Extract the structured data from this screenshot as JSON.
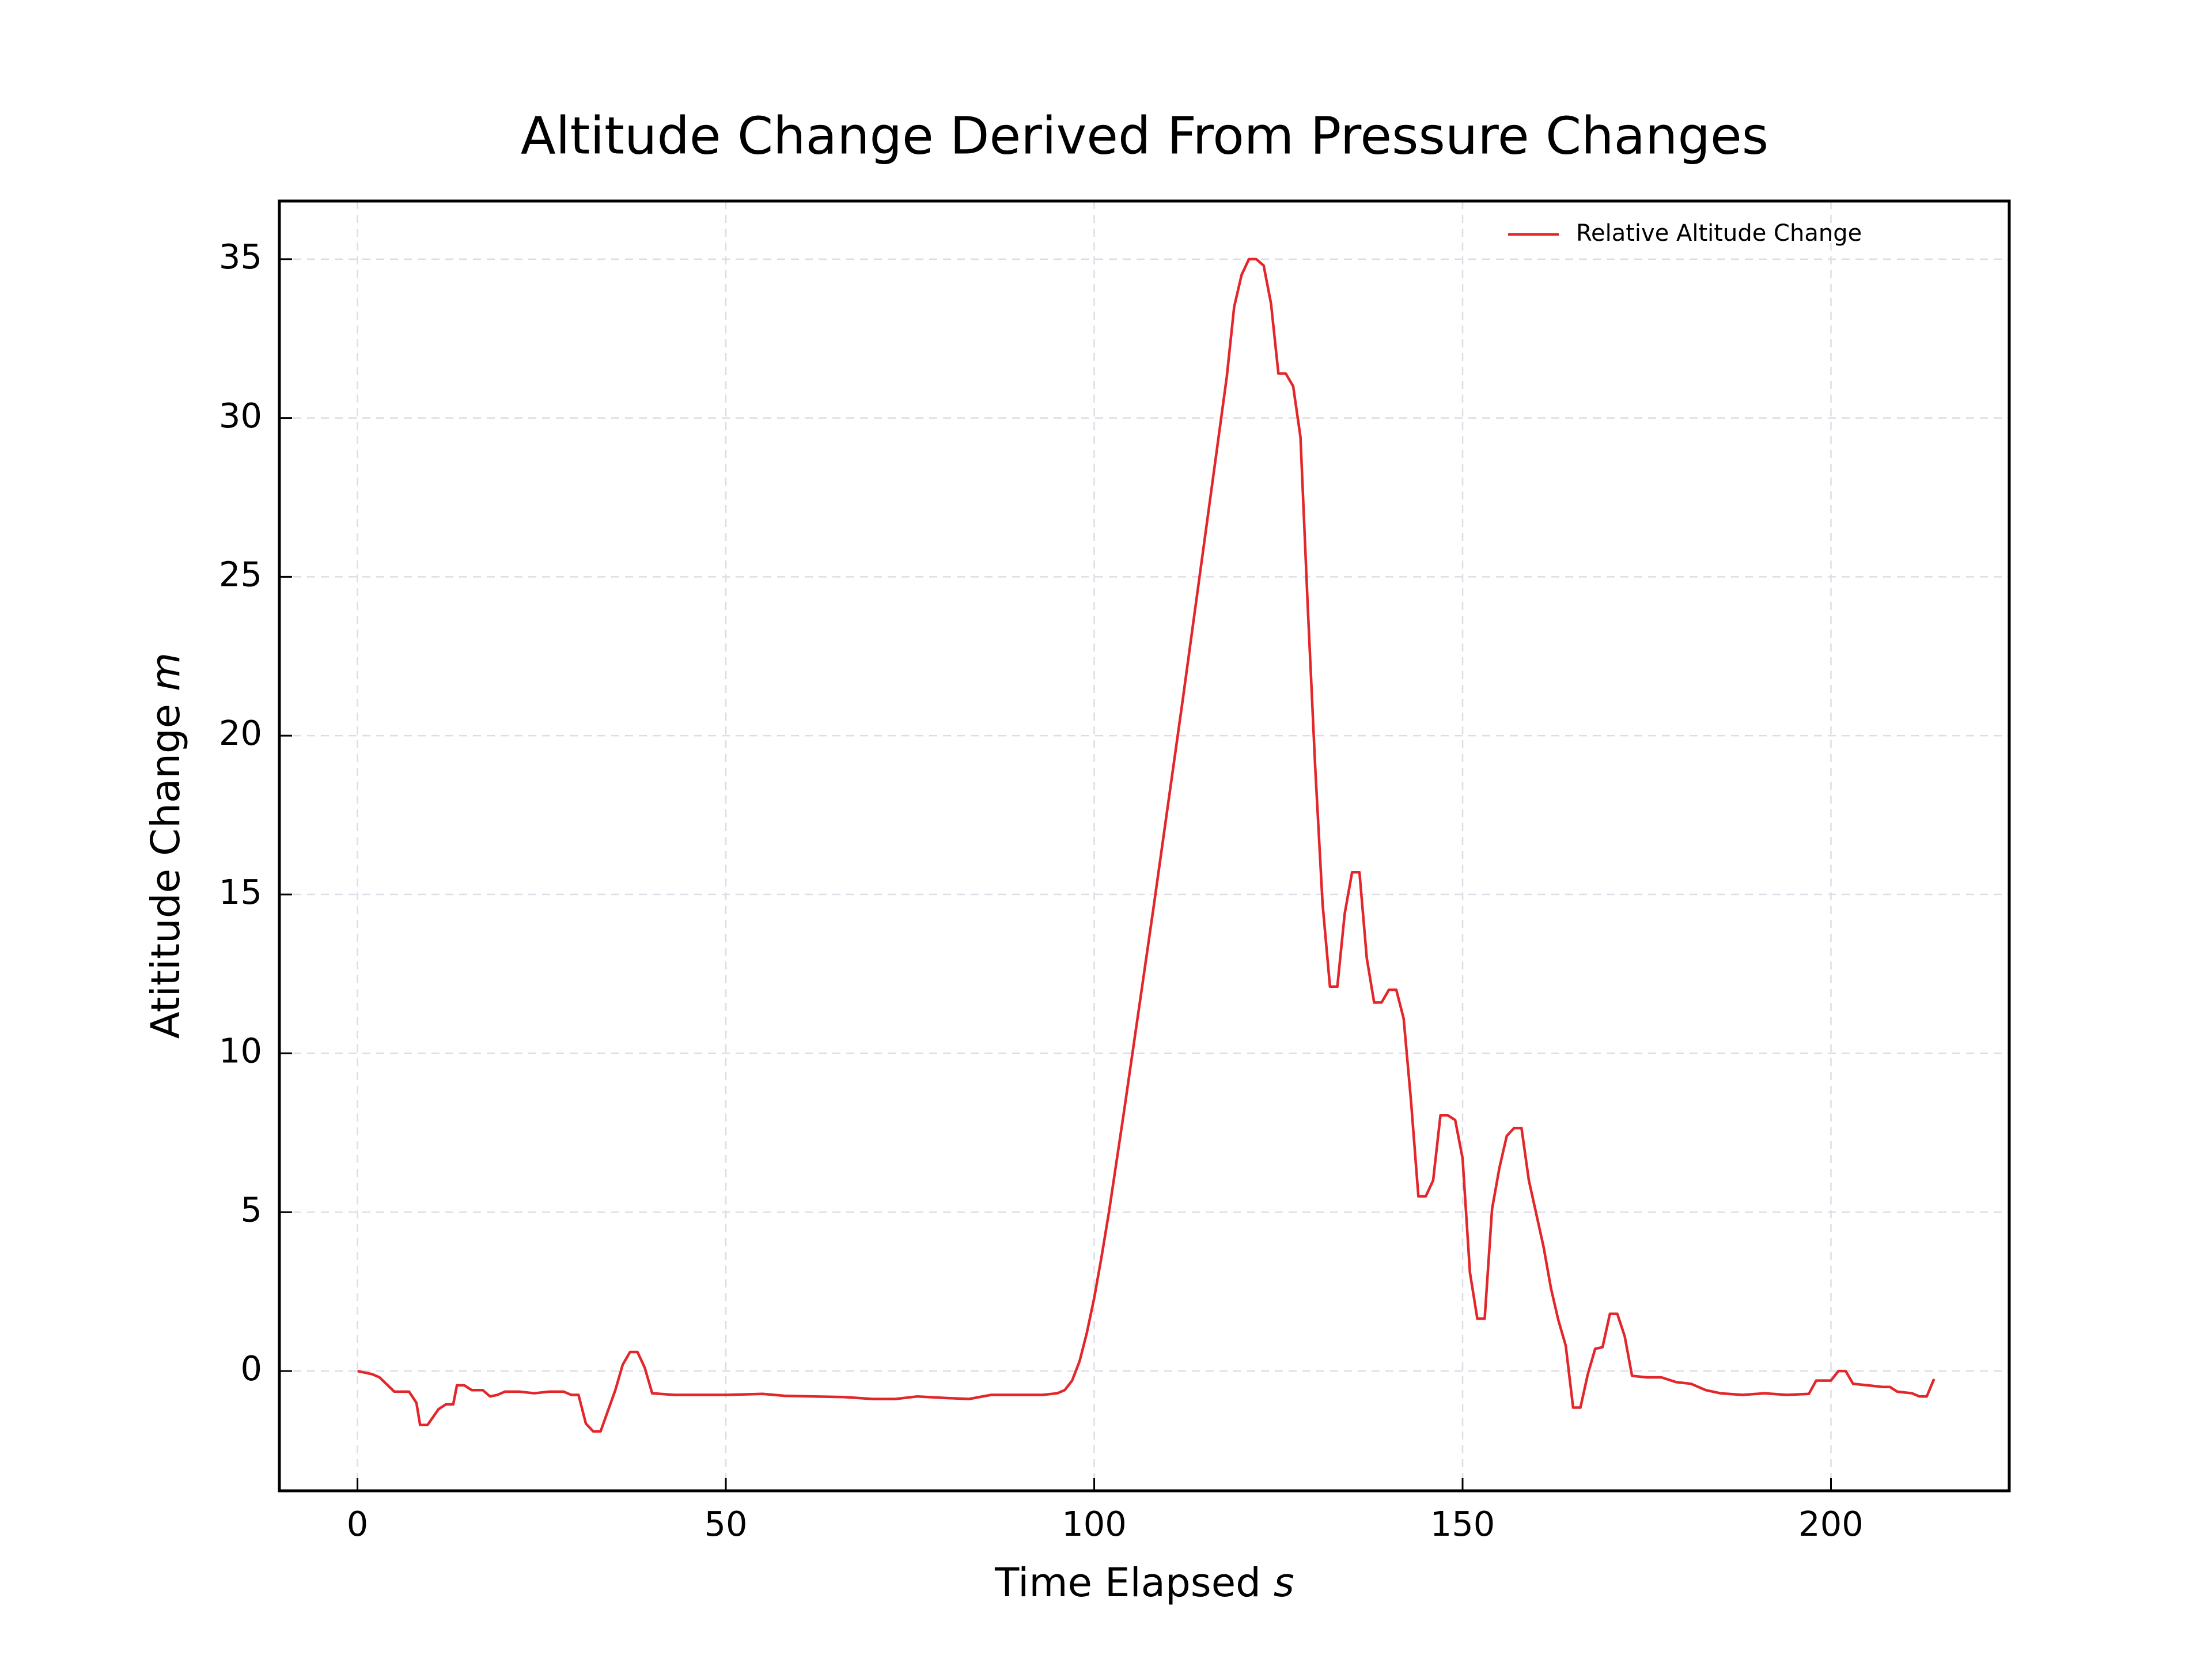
{
  "chart_data": {
    "type": "line",
    "title": "Altitude Change Derived From Pressure Changes",
    "xlabel": {
      "text": "Time Elapsed",
      "unit": "s"
    },
    "ylabel": {
      "text": "Atititude Change",
      "unit": "m"
    },
    "x": [
      0,
      2,
      3,
      5,
      7,
      8,
      8.5,
      9.5,
      11,
      12,
      13,
      13.5,
      14.5,
      15.5,
      17,
      18,
      19,
      20,
      22,
      24,
      26,
      28,
      29,
      30,
      31,
      32,
      33,
      35,
      36,
      37,
      38,
      39,
      40,
      43,
      46,
      50,
      55,
      58,
      62,
      66,
      70,
      73,
      76,
      80,
      83,
      86,
      90,
      93,
      95,
      96,
      97,
      98,
      99,
      100,
      101,
      102,
      104,
      106,
      108,
      110,
      112,
      114,
      116,
      118,
      119,
      120,
      121,
      122,
      123,
      124,
      125,
      126,
      127,
      128,
      129,
      130,
      131,
      132,
      133,
      134,
      135,
      136,
      137,
      138,
      139,
      140,
      141,
      142,
      143,
      144,
      145,
      146,
      147,
      148,
      149,
      150,
      151,
      152,
      153,
      154,
      155,
      156,
      157,
      158,
      159,
      161,
      162,
      163,
      164,
      165,
      166,
      167,
      168,
      169,
      170,
      171,
      172,
      173,
      175,
      177,
      179,
      181,
      183,
      185,
      188,
      191,
      194,
      197,
      198,
      200,
      201,
      202,
      203,
      205,
      207,
      208,
      209,
      211,
      212,
      213,
      214
    ],
    "series": [
      {
        "name": "Relative Altitude Change",
        "color": "#e3262a",
        "values": [
          0,
          -0.1,
          -0.2,
          -0.65,
          -0.65,
          -1.0,
          -1.7,
          -1.7,
          -1.2,
          -1.05,
          -1.05,
          -0.45,
          -0.45,
          -0.6,
          -0.6,
          -0.8,
          -0.75,
          -0.65,
          -0.65,
          -0.7,
          -0.65,
          -0.65,
          -0.75,
          -0.75,
          -1.65,
          -1.9,
          -1.9,
          -0.6,
          0.2,
          0.6,
          0.6,
          0.1,
          -0.7,
          -0.75,
          -0.75,
          -0.75,
          -0.72,
          -0.78,
          -0.8,
          -0.82,
          -0.88,
          -0.88,
          -0.8,
          -0.85,
          -0.88,
          -0.75,
          -0.75,
          -0.75,
          -0.7,
          -0.6,
          -0.3,
          0.3,
          1.2,
          2.3,
          3.6,
          5.0,
          8.1,
          11.3,
          14.5,
          17.8,
          21.1,
          24.5,
          27.9,
          31.3,
          33.5,
          34.5,
          35,
          35,
          34.8,
          33.6,
          31.4,
          31.4,
          31.0,
          29.4,
          24,
          19,
          14.7,
          12.1,
          12.1,
          14.4,
          15.7,
          15.7,
          13,
          11.6,
          11.6,
          12.0,
          12.0,
          11.1,
          8.5,
          5.5,
          5.5,
          6.0,
          8.05,
          8.05,
          7.9,
          6.7,
          3.1,
          1.65,
          1.65,
          5.1,
          6.4,
          7.4,
          7.65,
          7.65,
          6.0,
          3.9,
          2.6,
          1.6,
          0.8,
          -1.15,
          -1.15,
          -0.1,
          0.7,
          0.75,
          1.8,
          1.8,
          1.1,
          -0.15,
          -0.2,
          -0.2,
          -0.35,
          -0.4,
          -0.6,
          -0.7,
          -0.75,
          -0.7,
          -0.75,
          -0.72,
          -0.3,
          -0.3,
          0,
          0,
          -0.4,
          -0.45,
          -0.5,
          -0.5,
          -0.65,
          -0.7,
          -0.8,
          -0.8,
          -0.25
        ]
      }
    ],
    "xlim": [
      -10.6,
      224.2
    ],
    "ylim": [
      -3.77,
      36.83
    ],
    "xticks": [
      0,
      50,
      100,
      150,
      200
    ],
    "yticks": [
      0,
      5,
      10,
      15,
      20,
      25,
      30,
      35
    ],
    "grid": true,
    "legend": "upper right"
  }
}
